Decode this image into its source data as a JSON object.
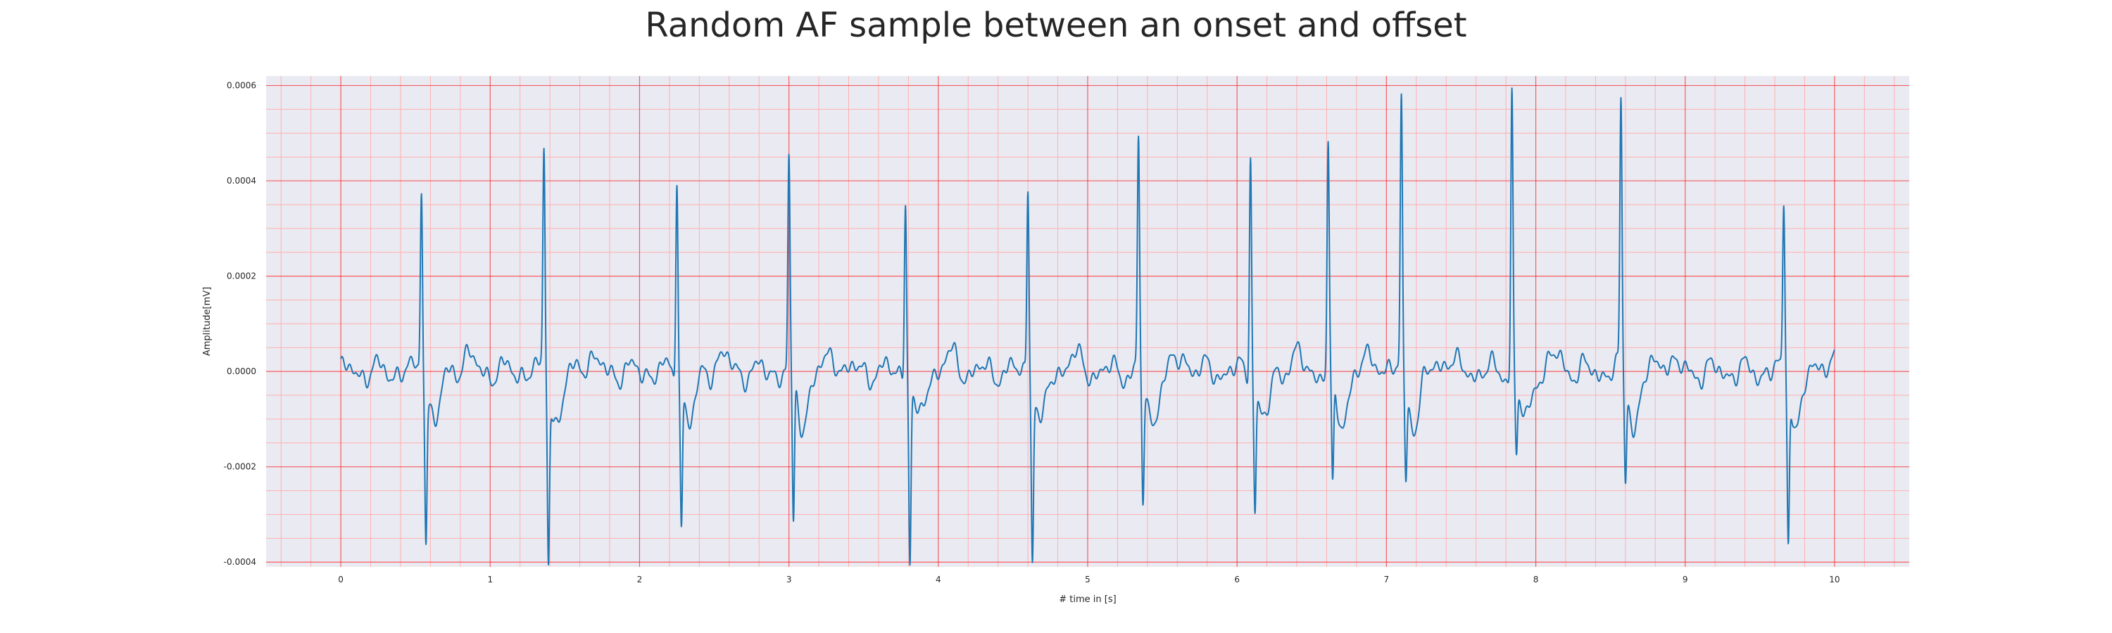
{
  "chart_data": {
    "type": "line",
    "title": "Random AF sample between an onset and offset",
    "xlabel": "# time in [s]",
    "ylabel": "Amplitude[mV]",
    "xlim": [
      -0.5,
      10.5
    ],
    "ylim": [
      -0.00041,
      0.00062
    ],
    "xticks": [
      0,
      1,
      2,
      3,
      4,
      5,
      6,
      7,
      8,
      9,
      10
    ],
    "xtick_labels": [
      "0",
      "1",
      "2",
      "3",
      "4",
      "5",
      "6",
      "7",
      "8",
      "9",
      "10"
    ],
    "yticks": [
      -0.0004,
      -0.0002,
      0.0,
      0.0002,
      0.0004,
      0.0006
    ],
    "ytick_labels": [
      "-0.0004",
      "-0.0002",
      "0.0000",
      "0.0002",
      "0.0004",
      "0.0006"
    ],
    "grid": true,
    "colors": {
      "line": "#1f77b4",
      "background": "#eaeaf2",
      "major_grid": "#ff0000",
      "minor_grid": "#ffb0b0"
    },
    "series": [
      {
        "beats": [
          {
            "t": 0.54,
            "r": 0.0004,
            "s": -0.00031
          },
          {
            "t": 1.36,
            "r": 0.00046,
            "s": -0.00036
          },
          {
            "t": 2.25,
            "r": 0.00043,
            "s": -0.0003
          },
          {
            "t": 3.0,
            "r": 0.00044,
            "s": -0.00031
          },
          {
            "t": 3.78,
            "r": 0.00038,
            "s": -0.00037
          },
          {
            "t": 4.6,
            "r": 0.0004,
            "s": -0.00035
          },
          {
            "t": 5.34,
            "r": 0.00048,
            "s": -0.00025
          },
          {
            "t": 6.09,
            "r": 0.00047,
            "s": -0.00025
          },
          {
            "t": 6.61,
            "r": 0.00047,
            "s": -0.00024
          },
          {
            "t": 7.1,
            "r": 0.00056,
            "s": -0.00019
          },
          {
            "t": 7.84,
            "r": 0.00059,
            "s": -0.00015
          },
          {
            "t": 8.57,
            "r": 0.00056,
            "s": -0.0002
          },
          {
            "t": 9.66,
            "r": 0.00035,
            "s": -0.00033
          }
        ],
        "start": 0,
        "end": 10
      }
    ]
  }
}
